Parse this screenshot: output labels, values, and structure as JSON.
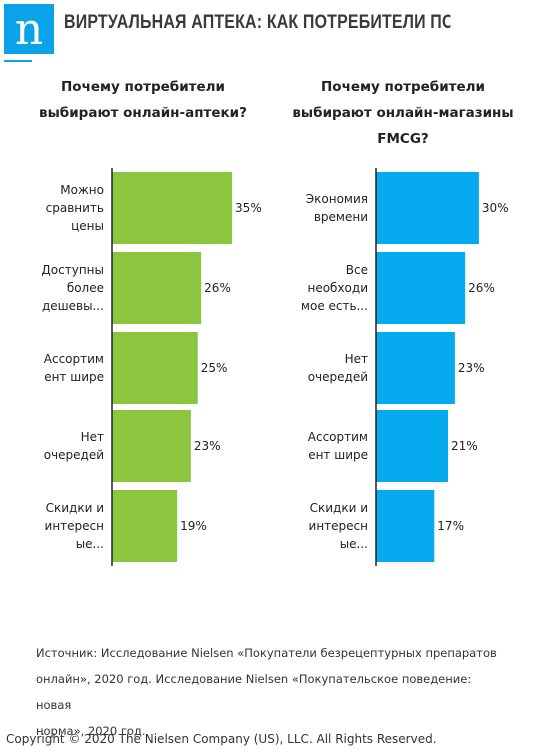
{
  "header": {
    "logo_letter": "n",
    "title": "ВИРТУАЛЬНАЯ АПТЕКА: КАК ПОТРЕБИТЕЛИ ПОКУПАЮТ ЛЕК..."
  },
  "colors": {
    "logo": "#0aa3e8",
    "left_bars": "#8cc63f",
    "right_bars": "#06aaee",
    "axis": "#222222"
  },
  "chart_data": [
    {
      "type": "bar",
      "orientation": "horizontal",
      "title": "Почему потребители выбирают онлайн-аптеки?",
      "title_lines": [
        "Почему потребители",
        "выбирают онлайн-аптеки?"
      ],
      "categories": [
        [
          "Можно",
          "сравнить",
          "цены"
        ],
        [
          "Доступны",
          "более",
          "дешевы..."
        ],
        [
          "Ассортим",
          "ент шире"
        ],
        [
          "Нет",
          "очередей"
        ],
        [
          "Скидки и",
          "интересн",
          "ые..."
        ]
      ],
      "values": [
        35,
        26,
        25,
        23,
        19
      ],
      "value_labels": [
        "35%",
        "26%",
        "25%",
        "23%",
        "19%"
      ],
      "unit": "%",
      "xlim": [
        0,
        40
      ]
    },
    {
      "type": "bar",
      "orientation": "horizontal",
      "title": "Почему потребители выбирают онлайн-магазины FMCG?",
      "title_lines": [
        "Почему потребители",
        "выбирают онлайн-магазины",
        "FMCG?"
      ],
      "categories": [
        [
          "Экономия",
          "времени"
        ],
        [
          "Все",
          "необходи",
          "мое есть..."
        ],
        [
          "Нет",
          "очередей"
        ],
        [
          "Ассортим",
          "ент шире"
        ],
        [
          "Скидки и",
          "интересн",
          "ые..."
        ]
      ],
      "values": [
        30,
        26,
        23,
        21,
        17
      ],
      "value_labels": [
        "30%",
        "26%",
        "23%",
        "21%",
        "17%"
      ],
      "unit": "%",
      "xlim": [
        0,
        40
      ]
    }
  ],
  "source": {
    "lines": [
      "Источник: Исследование Nielsen «Покупатели безрецептурных препаратов",
      "онлайн», 2020 год. Исследование Nielsen «Покупательское поведение: новая",
      "норма», 2020 год."
    ]
  },
  "copyright": "Copyright © 2020 The Nielsen Company (US), LLC. All Rights Reserved."
}
